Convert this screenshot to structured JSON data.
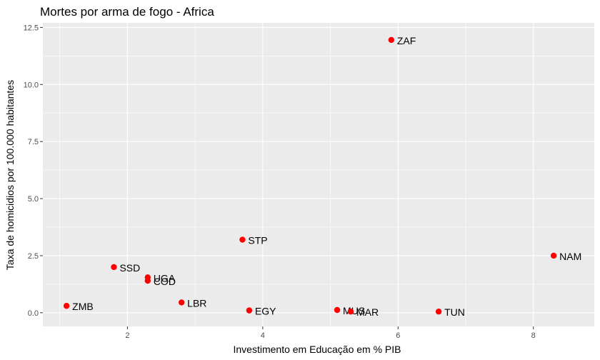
{
  "chart_data": {
    "type": "scatter",
    "title": "Mortes por arma de fogo - Africa",
    "xlabel": "Investimento em Educação em % PIB",
    "ylabel": "Taxa de homicidios por 100.000 habitantes",
    "xlim": [
      0.75,
      8.9
    ],
    "ylim": [
      -0.6,
      12.7
    ],
    "x_ticks": [
      2,
      4,
      6,
      8
    ],
    "x_tick_labels": [
      "2",
      "4",
      "6",
      "8"
    ],
    "y_ticks": [
      0,
      2.5,
      5,
      7.5,
      10,
      12.5
    ],
    "y_tick_labels": [
      "0.0",
      "2.5",
      "5.0",
      "7.5",
      "10.0",
      "12.5"
    ],
    "grid": true,
    "background_color": "#ebebeb",
    "grid_color": "#ffffff",
    "point_color": "#ff0000",
    "points": [
      {
        "label": "ZAF",
        "x": 5.9,
        "y": 11.95
      },
      {
        "label": "STP",
        "x": 3.7,
        "y": 3.2
      },
      {
        "label": "NAM",
        "x": 8.3,
        "y": 2.5
      },
      {
        "label": "SSD",
        "x": 1.8,
        "y": 2.0
      },
      {
        "label": "UGA",
        "x": 2.3,
        "y": 1.55
      },
      {
        "label": "COD",
        "x": 2.3,
        "y": 1.4
      },
      {
        "label": "ZMB",
        "x": 1.1,
        "y": 0.3
      },
      {
        "label": "LBR",
        "x": 2.8,
        "y": 0.45
      },
      {
        "label": "EGY",
        "x": 3.8,
        "y": 0.1
      },
      {
        "label": "MUS",
        "x": 5.1,
        "y": 0.12
      },
      {
        "label": "MAR",
        "x": 5.3,
        "y": 0.05
      },
      {
        "label": "TUN",
        "x": 6.6,
        "y": 0.05
      }
    ]
  }
}
